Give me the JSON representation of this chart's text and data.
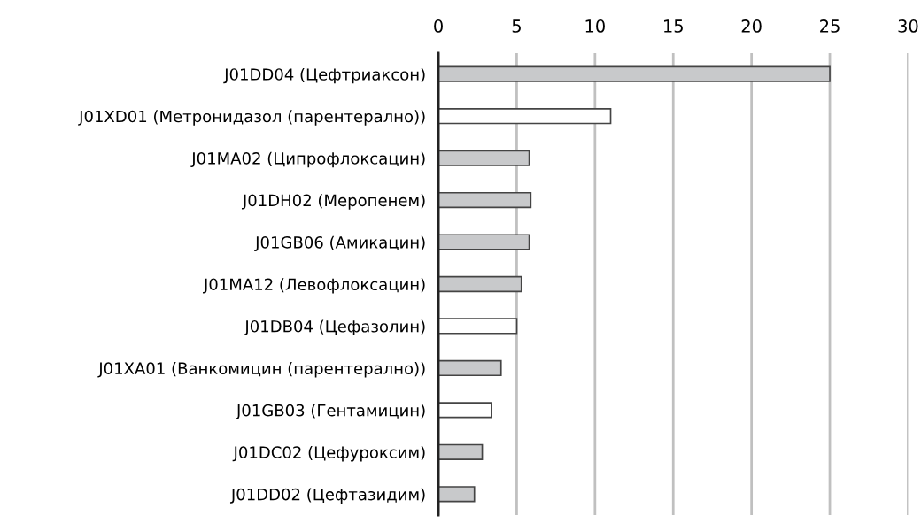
{
  "chart_data": {
    "type": "bar",
    "orientation": "horizontal",
    "categories": [
      "J01DD04 (Цефтриаксон)",
      "J01XD01 (Метронидазол (парентерално))",
      "J01MA02 (Ципрофлоксацин)",
      "J01DH02 (Меропенем)",
      "J01GB06 (Амикацин)",
      "J01MA12 (Левофлоксацин)",
      "J01DB04 (Цефазолин)",
      "J01XA01 (Ванкомицин (парентерално))",
      "J01GB03 (Гентамицин)",
      "J01DC02 (Цефуроксим)",
      "J01DD02 (Цефтазидим)"
    ],
    "values": [
      25,
      11.0,
      5.8,
      5.9,
      5.8,
      5.3,
      5.0,
      4.0,
      3.4,
      2.8,
      2.3
    ],
    "colors": [
      "#c8c9cb",
      "#ffffff",
      "#c8c9cb",
      "#c8c9cb",
      "#c8c9cb",
      "#c8c9cb",
      "#ffffff",
      "#c8c9cb",
      "#ffffff",
      "#c8c9cb",
      "#c8c9cb"
    ],
    "xlim": [
      0,
      30
    ],
    "xticks": [
      0,
      5,
      10,
      15,
      20,
      25,
      30
    ],
    "grid": "x"
  }
}
